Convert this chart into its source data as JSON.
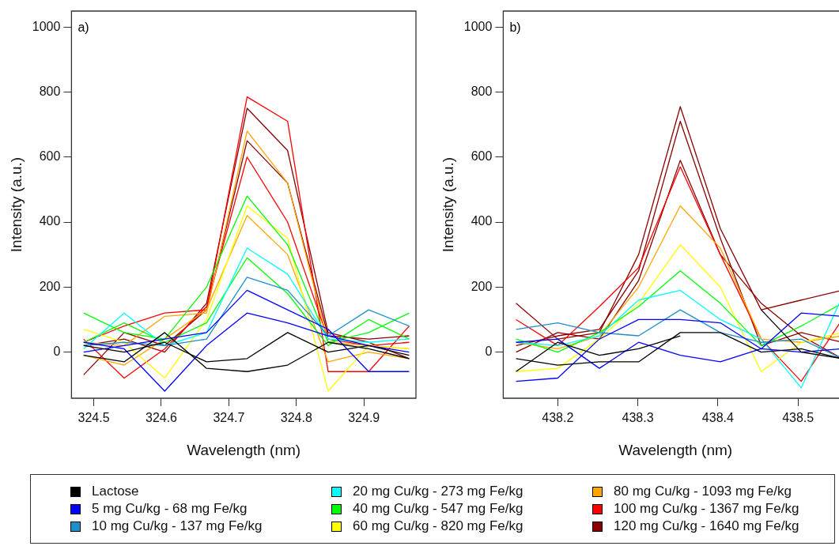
{
  "chart_data": [
    {
      "type": "line",
      "annotations": [
        "a)"
      ],
      "xlabel": "Wavelength (nm)",
      "ylabel": "Intensity (a.u.)",
      "x": [
        324.485,
        324.545,
        324.605,
        324.667,
        324.727,
        324.787,
        324.847,
        324.907,
        324.967
      ],
      "xlim": [
        324.467,
        324.977
      ],
      "xticks": [
        {
          "value": 324.5,
          "label": "324.5"
        },
        {
          "value": 324.6,
          "label": "324.6"
        },
        {
          "value": 324.7,
          "label": "324.7"
        },
        {
          "value": 324.8,
          "label": "324.8"
        },
        {
          "value": 324.9,
          "label": "324.9"
        }
      ],
      "ylim": [
        -142,
        1049
      ],
      "yticks": [
        0,
        200,
        400,
        600,
        800,
        1000
      ],
      "grid": false,
      "legend": "bottom",
      "marker": "none",
      "line_style": "solid",
      "series": [
        {
          "name": "Lactose",
          "color": "#000000",
          "values": [
            20,
            0,
            30,
            -30,
            -20,
            60,
            0,
            20,
            -10
          ]
        },
        {
          "color": "#000000",
          "values": [
            -10,
            -30,
            60,
            -50,
            -60,
            -40,
            30,
            10,
            -20
          ]
        },
        {
          "name": "5 mg Cu/kg - 68 mg Fe/kg",
          "color": "#0000ff",
          "values": [
            30,
            10,
            -120,
            20,
            120,
            90,
            50,
            20,
            0
          ]
        },
        {
          "color": "#0000ff",
          "values": [
            0,
            20,
            40,
            60,
            190,
            130,
            70,
            -60,
            -60
          ]
        },
        {
          "name": "10 mg Cu/kg - 137 mg Fe/kg",
          "color": "#1e8fc8",
          "values": [
            20,
            30,
            20,
            40,
            230,
            190,
            50,
            130,
            80
          ]
        },
        {
          "name": "20 mg Cu/kg - 273 mg Fe/kg",
          "color": "#00ffff",
          "values": [
            10,
            120,
            20,
            60,
            320,
            240,
            40,
            30,
            40
          ]
        },
        {
          "name": "40 mg Cu/kg - 547 mg Fe/kg",
          "color": "#00ff00",
          "values": [
            120,
            60,
            40,
            200,
            480,
            330,
            30,
            60,
            120
          ]
        },
        {
          "color": "#00ff00",
          "values": [
            30,
            90,
            30,
            90,
            290,
            180,
            20,
            100,
            40
          ]
        },
        {
          "name": "60 mg Cu/kg - 820 mg Fe/kg",
          "color": "#ffff00",
          "values": [
            70,
            30,
            -80,
            100,
            450,
            350,
            -120,
            20,
            10
          ]
        },
        {
          "name": "80 mg Cu/kg - 1093 mg Fe/kg",
          "color": "#ffa500",
          "values": [
            30,
            20,
            110,
            120,
            680,
            520,
            30,
            20,
            10
          ]
        },
        {
          "color": "#ffa500",
          "values": [
            -10,
            -40,
            40,
            130,
            420,
            300,
            -30,
            0,
            -20
          ]
        },
        {
          "name": "100 mg Cu/kg - 1367 mg Fe/kg",
          "color": "#ff0000",
          "values": [
            40,
            -80,
            10,
            140,
            600,
            400,
            40,
            20,
            30
          ]
        },
        {
          "color": "#ff0000",
          "values": [
            30,
            80,
            120,
            130,
            785,
            710,
            -60,
            -60,
            80
          ]
        },
        {
          "name": "120 mg Cu/kg - 1640 mg Fe/kg",
          "color": "#8b0000",
          "values": [
            -70,
            60,
            20,
            130,
            650,
            520,
            50,
            40,
            50
          ]
        },
        {
          "color": "#8b0000",
          "values": [
            20,
            40,
            0,
            150,
            750,
            620,
            60,
            30,
            -20
          ]
        }
      ]
    },
    {
      "type": "line",
      "annotations": [
        "b)"
      ],
      "xlabel": "Wavelength (nm)",
      "ylabel": "Intensity (a.u.)",
      "x": [
        438.148,
        438.2,
        438.252,
        438.301,
        438.353,
        438.403,
        438.454,
        438.504,
        438.555
      ],
      "xlim": [
        438.132,
        438.562
      ],
      "xticks": [
        {
          "value": 438.2,
          "label": "438.2"
        },
        {
          "value": 438.3,
          "label": "438.3"
        },
        {
          "value": 438.4,
          "label": "438.4"
        },
        {
          "value": 438.5,
          "label": "438.5"
        }
      ],
      "ylim": [
        -142,
        1049
      ],
      "yticks": [
        0,
        200,
        400,
        600,
        800,
        1000
      ],
      "grid": false,
      "legend": "bottom",
      "marker": "none",
      "line_style": "solid",
      "series": [
        {
          "name": "Lactose",
          "color": "#000000",
          "values": [
            -60,
            30,
            -10,
            10,
            50,
            null,
            130,
            0,
            -20
          ]
        },
        {
          "color": "#000000",
          "values": [
            -20,
            -40,
            -30,
            -30,
            60,
            60,
            0,
            10,
            -20
          ]
        },
        {
          "name": "5 mg Cu/kg - 68 mg Fe/kg",
          "color": "#0000ff",
          "values": [
            -90,
            -80,
            40,
            100,
            100,
            90,
            10,
            120,
            110
          ]
        },
        {
          "color": "#0000ff",
          "values": [
            30,
            40,
            -50,
            30,
            -10,
            -30,
            10,
            0,
            10
          ]
        },
        {
          "name": "10 mg Cu/kg - 137 mg Fe/kg",
          "color": "#1e8fc8",
          "values": [
            70,
            90,
            60,
            50,
            130,
            60,
            30,
            40,
            -20
          ]
        },
        {
          "name": "20 mg Cu/kg - 273 mg Fe/kg",
          "color": "#00ffff",
          "values": [
            30,
            20,
            50,
            160,
            190,
            100,
            40,
            -110,
            170
          ]
        },
        {
          "name": "40 mg Cu/kg - 547 mg Fe/kg",
          "color": "#00ff00",
          "values": [
            40,
            0,
            60,
            140,
            250,
            150,
            20,
            80,
            150
          ]
        },
        {
          "name": "60 mg Cu/kg - 820 mg Fe/kg",
          "color": "#ffff00",
          "values": [
            -60,
            -50,
            40,
            150,
            330,
            200,
            -60,
            30,
            60
          ]
        },
        {
          "name": "80 mg Cu/kg - 1093 mg Fe/kg",
          "color": "#ffa500",
          "values": [
            30,
            10,
            50,
            200,
            450,
            320,
            40,
            30,
            50
          ]
        },
        {
          "name": "100 mg Cu/kg - 1367 mg Fe/kg",
          "color": "#ff0000",
          "values": [
            100,
            20,
            140,
            260,
            570,
            300,
            40,
            -90,
            100
          ]
        },
        {
          "name": "120 mg Cu/kg - 1640 mg Fe/kg",
          "color": "#8b0000",
          "values": [
            150,
            40,
            60,
            300,
            755,
            380,
            130,
            160,
            190
          ]
        },
        {
          "color": "#8b0000",
          "values": [
            20,
            50,
            70,
            250,
            710,
            350,
            20,
            60,
            30
          ]
        },
        {
          "color": "#8b0000",
          "values": [
            0,
            60,
            40,
            220,
            590,
            300,
            150,
            50,
            -20
          ]
        }
      ]
    }
  ]
}
